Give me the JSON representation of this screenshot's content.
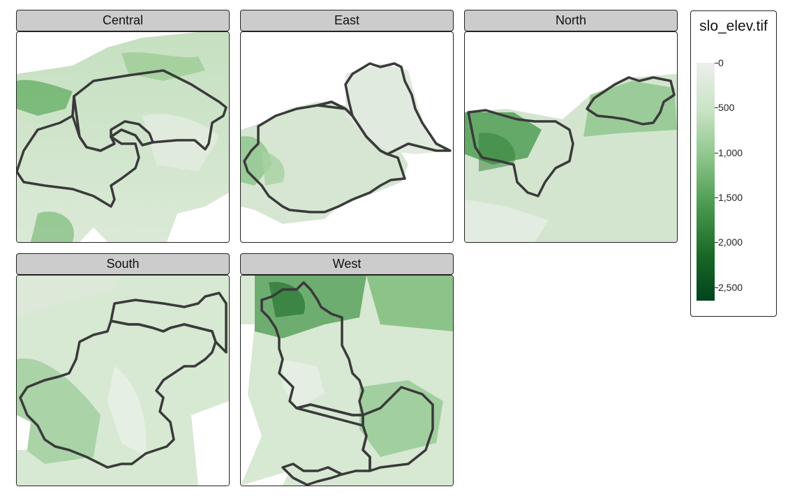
{
  "facets": [
    {
      "id": "central",
      "label": "Central"
    },
    {
      "id": "east",
      "label": "East"
    },
    {
      "id": "north",
      "label": "North"
    },
    {
      "id": "south",
      "label": "South"
    },
    {
      "id": "west",
      "label": "West"
    }
  ],
  "legend": {
    "title": "slo_elev.tif",
    "palette": [
      "#eeeeee",
      "#c9e3c5",
      "#8cc48a",
      "#4a9a4d",
      "#1c6a29",
      "#00441b"
    ],
    "range": [
      0,
      2650
    ],
    "ticks": [
      {
        "value": 0,
        "label": "0"
      },
      {
        "value": 500,
        "label": "500"
      },
      {
        "value": 1000,
        "label": "1,000"
      },
      {
        "value": 1500,
        "label": "1,500"
      },
      {
        "value": 2000,
        "label": "2,000"
      },
      {
        "value": 2500,
        "label": "2,500"
      }
    ]
  },
  "colors": {
    "boundary": "#3a3a3a",
    "strip": "#cccccc",
    "low_terrain": "#e6ede4",
    "mid_terrain": "#cfe3cb"
  }
}
